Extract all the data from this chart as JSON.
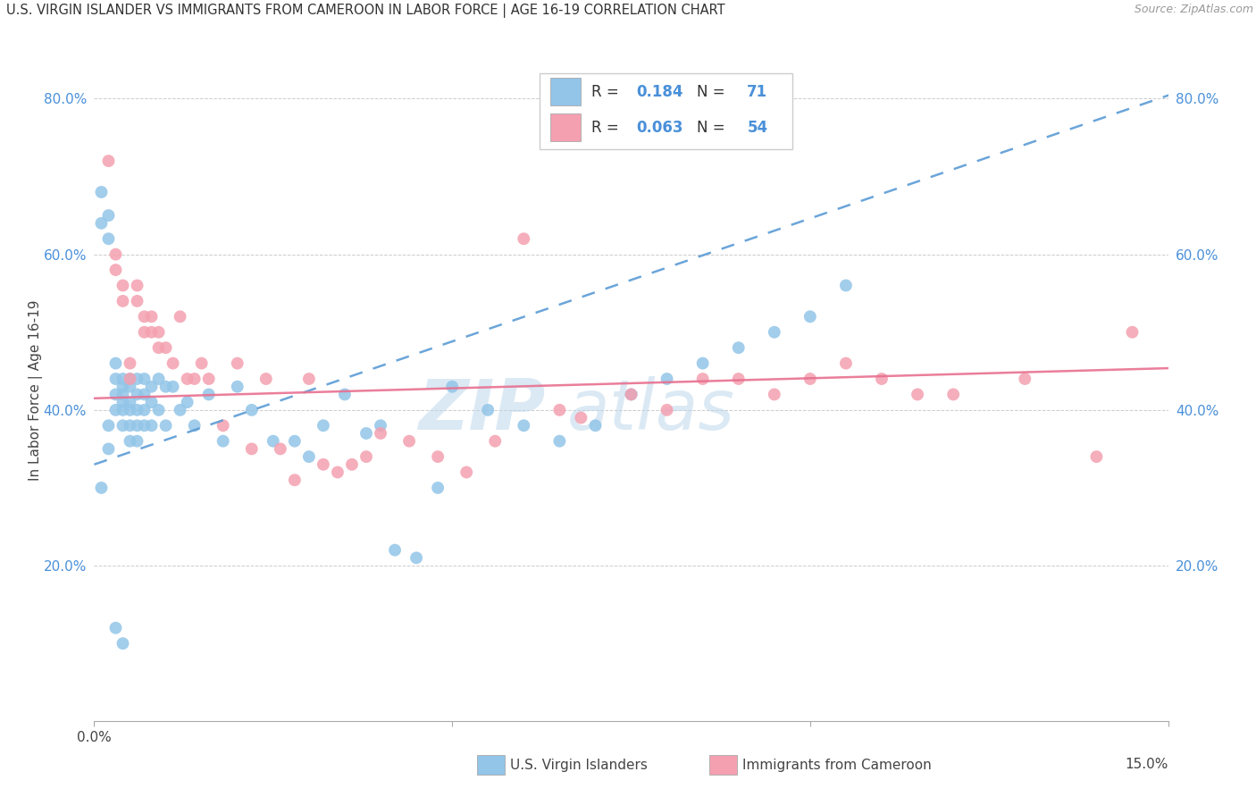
{
  "title": "U.S. VIRGIN ISLANDER VS IMMIGRANTS FROM CAMEROON IN LABOR FORCE | AGE 16-19 CORRELATION CHART",
  "source": "Source: ZipAtlas.com",
  "ylabel": "In Labor Force | Age 16-19",
  "xlim": [
    0.0,
    0.15
  ],
  "ylim": [
    0.0,
    0.85
  ],
  "blue_color": "#92C5E8",
  "pink_color": "#F4A0B0",
  "blue_line_color": "#5B9BD5",
  "pink_line_color": "#E87090",
  "R_blue": 0.184,
  "N_blue": 71,
  "R_pink": 0.063,
  "N_pink": 54,
  "blue_points_x": [
    0.001,
    0.001,
    0.001,
    0.002,
    0.002,
    0.002,
    0.002,
    0.003,
    0.003,
    0.003,
    0.003,
    0.003,
    0.004,
    0.004,
    0.004,
    0.004,
    0.004,
    0.004,
    0.004,
    0.005,
    0.005,
    0.005,
    0.005,
    0.005,
    0.005,
    0.006,
    0.006,
    0.006,
    0.006,
    0.006,
    0.007,
    0.007,
    0.007,
    0.007,
    0.008,
    0.008,
    0.008,
    0.009,
    0.009,
    0.01,
    0.01,
    0.011,
    0.012,
    0.013,
    0.014,
    0.016,
    0.018,
    0.02,
    0.022,
    0.025,
    0.028,
    0.03,
    0.032,
    0.035,
    0.038,
    0.04,
    0.042,
    0.045,
    0.048,
    0.05,
    0.055,
    0.06,
    0.065,
    0.07,
    0.075,
    0.08,
    0.085,
    0.09,
    0.095,
    0.1,
    0.105
  ],
  "blue_points_y": [
    0.68,
    0.64,
    0.3,
    0.65,
    0.62,
    0.38,
    0.35,
    0.42,
    0.44,
    0.46,
    0.4,
    0.12,
    0.44,
    0.43,
    0.42,
    0.41,
    0.4,
    0.38,
    0.1,
    0.44,
    0.43,
    0.41,
    0.4,
    0.38,
    0.36,
    0.44,
    0.42,
    0.4,
    0.38,
    0.36,
    0.44,
    0.42,
    0.4,
    0.38,
    0.43,
    0.41,
    0.38,
    0.44,
    0.4,
    0.43,
    0.38,
    0.43,
    0.4,
    0.41,
    0.38,
    0.42,
    0.36,
    0.43,
    0.4,
    0.36,
    0.36,
    0.34,
    0.38,
    0.42,
    0.37,
    0.38,
    0.22,
    0.21,
    0.3,
    0.43,
    0.4,
    0.38,
    0.36,
    0.38,
    0.42,
    0.44,
    0.46,
    0.48,
    0.5,
    0.52,
    0.56
  ],
  "pink_points_x": [
    0.002,
    0.003,
    0.003,
    0.004,
    0.004,
    0.005,
    0.005,
    0.006,
    0.006,
    0.007,
    0.007,
    0.008,
    0.008,
    0.009,
    0.009,
    0.01,
    0.011,
    0.012,
    0.013,
    0.014,
    0.015,
    0.016,
    0.018,
    0.02,
    0.022,
    0.024,
    0.026,
    0.028,
    0.03,
    0.032,
    0.034,
    0.036,
    0.038,
    0.04,
    0.044,
    0.048,
    0.052,
    0.056,
    0.06,
    0.065,
    0.068,
    0.075,
    0.08,
    0.085,
    0.09,
    0.095,
    0.1,
    0.105,
    0.11,
    0.115,
    0.12,
    0.13,
    0.14,
    0.145
  ],
  "pink_points_y": [
    0.72,
    0.6,
    0.58,
    0.56,
    0.54,
    0.46,
    0.44,
    0.56,
    0.54,
    0.52,
    0.5,
    0.52,
    0.5,
    0.5,
    0.48,
    0.48,
    0.46,
    0.52,
    0.44,
    0.44,
    0.46,
    0.44,
    0.38,
    0.46,
    0.35,
    0.44,
    0.35,
    0.31,
    0.44,
    0.33,
    0.32,
    0.33,
    0.34,
    0.37,
    0.36,
    0.34,
    0.32,
    0.36,
    0.62,
    0.4,
    0.39,
    0.42,
    0.4,
    0.44,
    0.44,
    0.42,
    0.44,
    0.46,
    0.44,
    0.42,
    0.42,
    0.44,
    0.34,
    0.5
  ]
}
